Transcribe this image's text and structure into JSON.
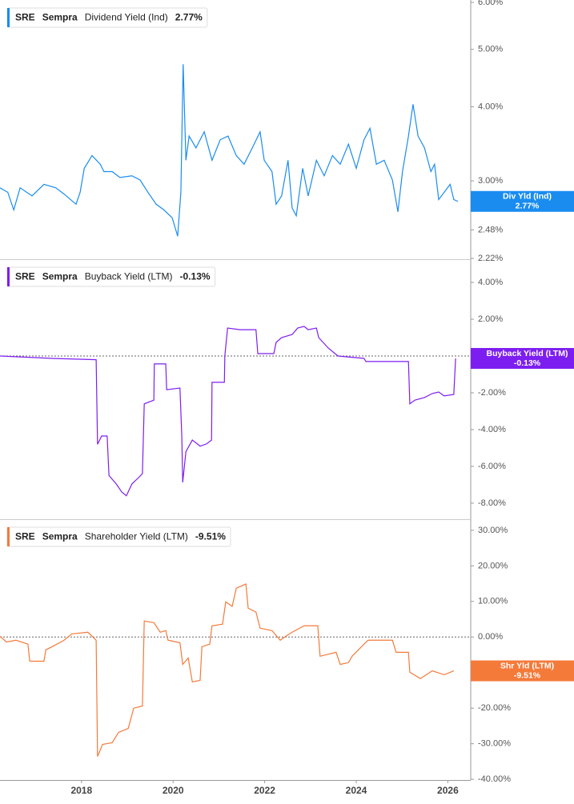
{
  "chart_data": [
    {
      "type": "line",
      "ticker": "SRE",
      "company": "Sempra",
      "xlim": [
        2016.22,
        2026.5
      ],
      "ylim": [
        2.22,
        6.0
      ],
      "log_scale": true,
      "yticks": [
        {
          "value": 6.0,
          "label": "6.00%"
        },
        {
          "value": 5.0,
          "label": "5.00%"
        },
        {
          "value": 4.0,
          "label": "4.00%"
        },
        {
          "value": 3.0,
          "label": "3.00%"
        },
        {
          "value": 2.48,
          "label": "2.48%"
        },
        {
          "value": 2.22,
          "label": "2.22%"
        }
      ],
      "x": [
        2016.22,
        2016.39,
        2016.52,
        2016.66,
        2016.92,
        2017.18,
        2017.44,
        2017.62,
        2017.88,
        2017.97,
        2018.06,
        2018.23,
        2018.41,
        2018.49,
        2018.67,
        2018.84,
        2019.1,
        2019.28,
        2019.45,
        2019.63,
        2019.8,
        2019.98,
        2020.1,
        2020.17,
        2020.22,
        2020.28,
        2020.35,
        2020.5,
        2020.68,
        2020.85,
        2021.03,
        2021.2,
        2021.38,
        2021.55,
        2021.73,
        2021.9,
        2021.99,
        2022.16,
        2022.25,
        2022.37,
        2022.51,
        2022.6,
        2022.69,
        2022.83,
        2022.95,
        2023.13,
        2023.3,
        2023.48,
        2023.65,
        2023.83,
        2024.0,
        2024.17,
        2024.3,
        2024.44,
        2024.61,
        2024.79,
        2024.91,
        2025.01,
        2025.14,
        2025.24,
        2025.35,
        2025.49,
        2025.63,
        2025.71,
        2025.8,
        2025.92,
        2026.05,
        2026.13,
        2026.22
      ],
      "series": [
        {
          "name": "Dividend Yield (Ind)",
          "tag": "Div Yld (Ind)",
          "last_label": "2.77%",
          "color": "#1a8cf0",
          "values": [
            2.92,
            2.87,
            2.68,
            2.92,
            2.83,
            2.96,
            2.92,
            2.85,
            2.74,
            2.87,
            3.15,
            3.31,
            3.2,
            3.11,
            3.11,
            3.04,
            3.06,
            3.01,
            2.87,
            2.74,
            2.68,
            2.6,
            2.42,
            2.87,
            4.72,
            3.25,
            3.57,
            3.41,
            3.63,
            3.25,
            3.52,
            3.57,
            3.31,
            3.2,
            3.41,
            3.63,
            3.25,
            3.11,
            2.74,
            2.83,
            3.25,
            2.7,
            2.62,
            3.15,
            2.83,
            3.25,
            3.06,
            3.31,
            3.2,
            3.46,
            3.15,
            3.52,
            3.68,
            3.2,
            3.25,
            3.01,
            2.66,
            3.11,
            3.57,
            4.04,
            3.57,
            3.41,
            3.11,
            3.2,
            2.79,
            2.87,
            2.96,
            2.79,
            2.77
          ]
        }
      ]
    },
    {
      "type": "line",
      "ticker": "SRE",
      "company": "Sempra",
      "xlim": [
        2016.22,
        2026.5
      ],
      "ylim": [
        -8.83,
        5.22
      ],
      "zero_line": true,
      "yticks": [
        {
          "value": 4,
          "label": "4.00%"
        },
        {
          "value": 2,
          "label": "2.00%"
        },
        {
          "value": -2,
          "label": "-2.00%"
        },
        {
          "value": -4,
          "label": "-4.00%"
        },
        {
          "value": -6,
          "label": "-6.00%"
        },
        {
          "value": -8,
          "label": "-8.00%"
        }
      ],
      "x": [
        2016.22,
        2017.36,
        2018.32,
        2018.35,
        2018.44,
        2018.56,
        2018.6,
        2018.76,
        2018.88,
        2018.98,
        2019.1,
        2019.23,
        2019.33,
        2019.37,
        2019.58,
        2019.59,
        2019.84,
        2019.86,
        2020.15,
        2020.19,
        2020.21,
        2020.28,
        2020.42,
        2020.59,
        2020.73,
        2020.84,
        2020.85,
        2021.12,
        2021.13,
        2021.19,
        2021.46,
        2021.81,
        2021.85,
        2022.2,
        2022.25,
        2022.37,
        2022.6,
        2022.72,
        2022.86,
        2022.95,
        2023.13,
        2023.18,
        2023.39,
        2023.6,
        2024.17,
        2024.21,
        2025.14,
        2025.17,
        2025.28,
        2025.49,
        2025.66,
        2025.8,
        2025.92,
        2026.13,
        2026.17
      ],
      "series": [
        {
          "name": "Buyback Yield (LTM)",
          "tag": "Buyback Yield (LTM)",
          "last_label": "-0.13%",
          "color": "#7d1ef0",
          "values": [
            0.0,
            -0.13,
            -0.2,
            -4.8,
            -4.35,
            -4.35,
            -6.5,
            -6.96,
            -7.4,
            -7.6,
            -6.96,
            -6.65,
            -6.4,
            -2.6,
            -2.4,
            -0.43,
            -0.43,
            -1.83,
            -1.74,
            -4.35,
            -6.87,
            -5.2,
            -4.57,
            -4.9,
            -4.78,
            -4.57,
            -1.43,
            -1.43,
            0.0,
            1.52,
            1.43,
            1.43,
            0.13,
            0.13,
            0.74,
            1.0,
            1.17,
            1.52,
            1.61,
            1.43,
            1.52,
            1.0,
            0.43,
            0.0,
            -0.13,
            -0.3,
            -0.3,
            -2.6,
            -2.4,
            -2.26,
            -2.04,
            -1.96,
            -2.17,
            -2.09,
            -0.13
          ]
        }
      ]
    },
    {
      "type": "line",
      "ticker": "SRE",
      "company": "Sempra",
      "xlim": [
        2016.22,
        2026.5
      ],
      "ylim": [
        -40.2,
        32.9
      ],
      "zero_line": true,
      "xticks": [
        2018,
        2020,
        2022,
        2024,
        2026
      ],
      "yticks": [
        {
          "value": 30,
          "label": "30.00%"
        },
        {
          "value": 20,
          "label": "20.00%"
        },
        {
          "value": 10,
          "label": "10.00%"
        },
        {
          "value": 0,
          "label": "0.00%"
        },
        {
          "value": -10,
          "label": "-10.00%"
        },
        {
          "value": -20,
          "label": "-20.00%"
        },
        {
          "value": -30,
          "label": "-30.00%"
        },
        {
          "value": -40,
          "label": "-40.00%"
        }
      ],
      "x": [
        2016.22,
        2016.36,
        2016.57,
        2016.83,
        2016.87,
        2017.18,
        2017.22,
        2017.36,
        2017.62,
        2017.79,
        2018.14,
        2018.32,
        2018.35,
        2018.46,
        2018.67,
        2018.81,
        2019.02,
        2019.14,
        2019.33,
        2019.37,
        2019.58,
        2019.72,
        2019.84,
        2019.89,
        2020.15,
        2020.21,
        2020.33,
        2020.42,
        2020.59,
        2020.63,
        2020.8,
        2020.85,
        2021.08,
        2021.15,
        2021.29,
        2021.38,
        2021.59,
        2021.64,
        2021.81,
        2021.9,
        2022.16,
        2022.34,
        2022.46,
        2022.6,
        2022.86,
        2023.16,
        2023.21,
        2023.56,
        2023.65,
        2023.83,
        2023.91,
        2024.17,
        2024.26,
        2024.79,
        2024.87,
        2025.14,
        2025.17,
        2025.4,
        2025.66,
        2025.92,
        2026.13
      ],
      "series": [
        {
          "name": "Shareholder Yield (LTM)",
          "tag": "Shr Yld (LTM)",
          "last_label": "-9.51%",
          "color": "#f47a3a",
          "values": [
            0.2,
            -1.4,
            -0.9,
            -2.0,
            -6.8,
            -6.8,
            -3.6,
            -2.7,
            -0.9,
            0.9,
            1.35,
            -0.9,
            -33.6,
            -30.2,
            -29.7,
            -26.8,
            -25.7,
            -20.0,
            -19.4,
            4.5,
            4.05,
            1.35,
            1.8,
            -0.9,
            -1.6,
            -7.7,
            -5.9,
            -12.6,
            -12.2,
            -2.7,
            -2.0,
            3.15,
            3.6,
            9.9,
            8.6,
            13.7,
            14.9,
            8.1,
            7.0,
            2.5,
            1.8,
            -0.9,
            0.2,
            1.35,
            3.15,
            3.15,
            -5.4,
            -4.3,
            -7.7,
            -7.2,
            -5.4,
            -2.0,
            -0.9,
            -0.9,
            -4.3,
            -4.3,
            -9.9,
            -11.7,
            -9.5,
            -10.6,
            -9.51
          ]
        }
      ]
    }
  ]
}
